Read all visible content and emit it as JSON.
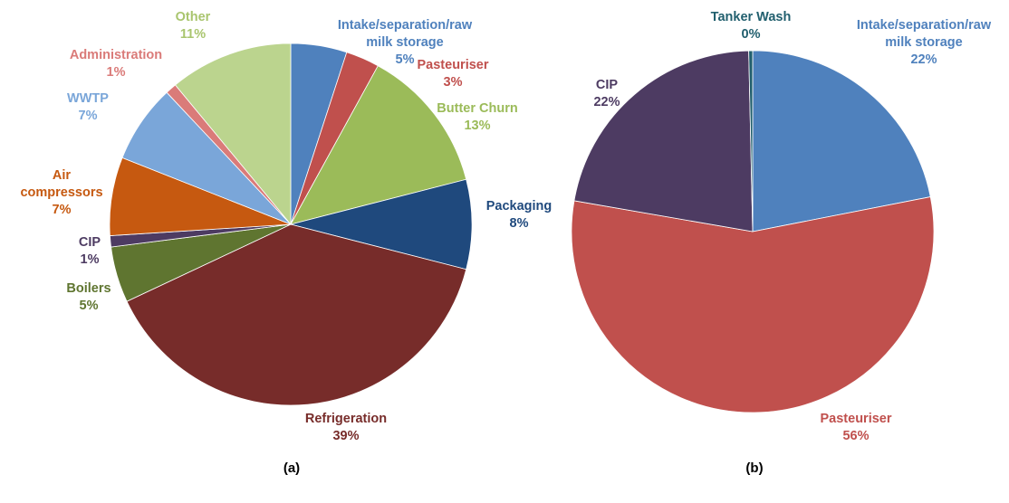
{
  "chart_data": [
    {
      "type": "pie",
      "caption": "(a)",
      "slices": [
        {
          "name": "Intake/separation/raw milk storage",
          "label_lines": [
            "Intake/separation/raw",
            "milk storage",
            "5%"
          ],
          "value": 5,
          "color": "#4F81BD",
          "label_color": "#4F81BD"
        },
        {
          "name": "Pasteuriser",
          "label_lines": [
            "Pasteuriser",
            "3%"
          ],
          "value": 3,
          "color": "#C0504D",
          "label_color": "#C0504D"
        },
        {
          "name": "Butter Churn",
          "label_lines": [
            "Butter Churn",
            "13%"
          ],
          "value": 13,
          "color": "#9BBB59",
          "label_color": "#9BBB59"
        },
        {
          "name": "Packaging",
          "label_lines": [
            "Packaging",
            "8%"
          ],
          "value": 8,
          "color": "#1F497D",
          "label_color": "#1F497D"
        },
        {
          "name": "Refrigeration",
          "label_lines": [
            "Refrigeration",
            "39%"
          ],
          "value": 39,
          "color": "#772C2A",
          "label_color": "#772C2A"
        },
        {
          "name": "Boilers",
          "label_lines": [
            "Boilers",
            "5%"
          ],
          "value": 5,
          "color": "#5F7530",
          "label_color": "#5F7530"
        },
        {
          "name": "CIP",
          "label_lines": [
            "CIP",
            "1%"
          ],
          "value": 1,
          "color": "#4D3B62",
          "label_color": "#4D3B62"
        },
        {
          "name": "Air compressors",
          "label_lines": [
            "Air",
            "compressors",
            "7%"
          ],
          "value": 7,
          "color": "#C65910",
          "label_color": "#C65910"
        },
        {
          "name": "WWTP",
          "label_lines": [
            "WWTP",
            "7%"
          ],
          "value": 7,
          "color": "#7AA6D9",
          "label_color": "#7AA6D9"
        },
        {
          "name": "Administration",
          "label_lines": [
            "Administration",
            "1%"
          ],
          "value": 1,
          "color": "#DA7B79",
          "label_color": "#DA7B79"
        },
        {
          "name": "Other",
          "label_lines": [
            "Other",
            "11%"
          ],
          "value": 11,
          "color": "#BBD48E",
          "label_color": "#A9C56E"
        }
      ]
    },
    {
      "type": "pie",
      "caption": "(b)",
      "slices": [
        {
          "name": "Intake/separation/raw milk storage",
          "label_lines": [
            "Intake/separation/raw",
            "milk storage",
            "22%"
          ],
          "value": 22,
          "color": "#4F81BD",
          "label_color": "#4F81BD"
        },
        {
          "name": "Pasteuriser",
          "label_lines": [
            "Pasteuriser",
            "56%"
          ],
          "value": 56,
          "color": "#C0504D",
          "label_color": "#C0504D"
        },
        {
          "name": "CIP",
          "label_lines": [
            "CIP",
            "22%"
          ],
          "value": 22,
          "color": "#4D3B62",
          "label_color": "#4D3B62"
        },
        {
          "name": "Tanker Wash",
          "label_lines": [
            "Tanker Wash",
            "0%"
          ],
          "value": 0.35,
          "color": "#215F6E",
          "label_color": "#215F6E"
        }
      ]
    }
  ]
}
